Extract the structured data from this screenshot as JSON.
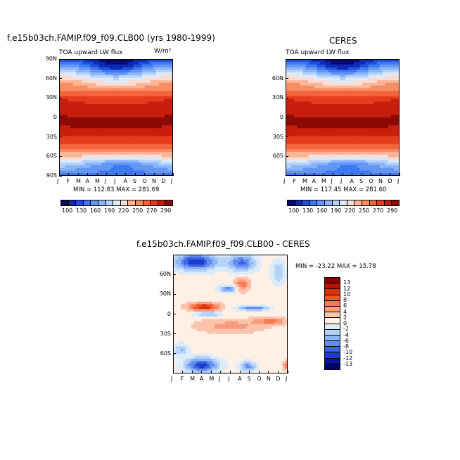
{
  "chart_data": [
    {
      "type": "heatmap",
      "title": "f.e15b03ch.FAMIP.f09_f09.CLB00 (yrs 1980-1999)",
      "subtitle_left": "TOA upward LW flux",
      "subtitle_right": "W/m²",
      "x_tick_labels": [
        "J",
        "F",
        "M",
        "A",
        "M",
        "J",
        "J",
        "A",
        "S",
        "O",
        "N",
        "D",
        "J"
      ],
      "y_tick_labels": [
        "90N",
        "60N",
        "30N",
        "0",
        "30S",
        "60S",
        "90S"
      ],
      "stats": "MIN = 112.83  MAX = 281.69",
      "colorbar_labels": [
        "100",
        "130",
        "160",
        "190",
        "220",
        "250",
        "270",
        "290"
      ]
    },
    {
      "type": "heatmap",
      "title": "CERES",
      "subtitle_left": "TOA upward LW flux",
      "x_tick_labels": [
        "J",
        "F",
        "M",
        "A",
        "M",
        "J",
        "J",
        "A",
        "S",
        "O",
        "N",
        "D",
        "J"
      ],
      "y_tick_labels": [
        "60N",
        "30N",
        "0",
        "30S",
        "60S"
      ],
      "stats": "MIN = 117.45  MAX = 281.60",
      "colorbar_labels": [
        "100",
        "130",
        "160",
        "190",
        "220",
        "250",
        "270",
        "290"
      ]
    },
    {
      "type": "heatmap",
      "title": "f.e15b03ch.FAMIP.f09_f09.CLB00 - CERES",
      "x_tick_labels": [
        "J",
        "F",
        "M",
        "A",
        "M",
        "J",
        "J",
        "A",
        "S",
        "O",
        "N",
        "D",
        "J"
      ],
      "y_tick_labels": [
        "60N",
        "30N",
        "0",
        "30S",
        "60S"
      ],
      "stats": "MIN = -23.22  MAX =  15.78",
      "colorbar_labels": [
        "13",
        "12",
        "10",
        "8",
        "6",
        "4",
        "2",
        "0",
        "-2",
        "-4",
        "-6",
        "-8",
        "-10",
        "-12",
        "-13"
      ]
    }
  ],
  "colors": {
    "abs_scale": [
      "#08086e",
      "#0f28b4",
      "#1e50dc",
      "#3c78f0",
      "#6496f5",
      "#8cb4fa",
      "#b4d2fa",
      "#dceafa",
      "#fadcd2",
      "#fab496",
      "#fa8c64",
      "#f5643c",
      "#e63c1e",
      "#c81e0f",
      "#8c0a05"
    ],
    "diff_scale": [
      "#8c0000",
      "#b41400",
      "#dc320a",
      "#f05528",
      "#fa7850",
      "#fa9b7d",
      "#fac3aa",
      "#fff0e6",
      "#dcebfa",
      "#b4d2fa",
      "#8cb4f5",
      "#648cf0",
      "#3c64e6",
      "#1e3cc8",
      "#0a149b",
      "#000070"
    ]
  }
}
